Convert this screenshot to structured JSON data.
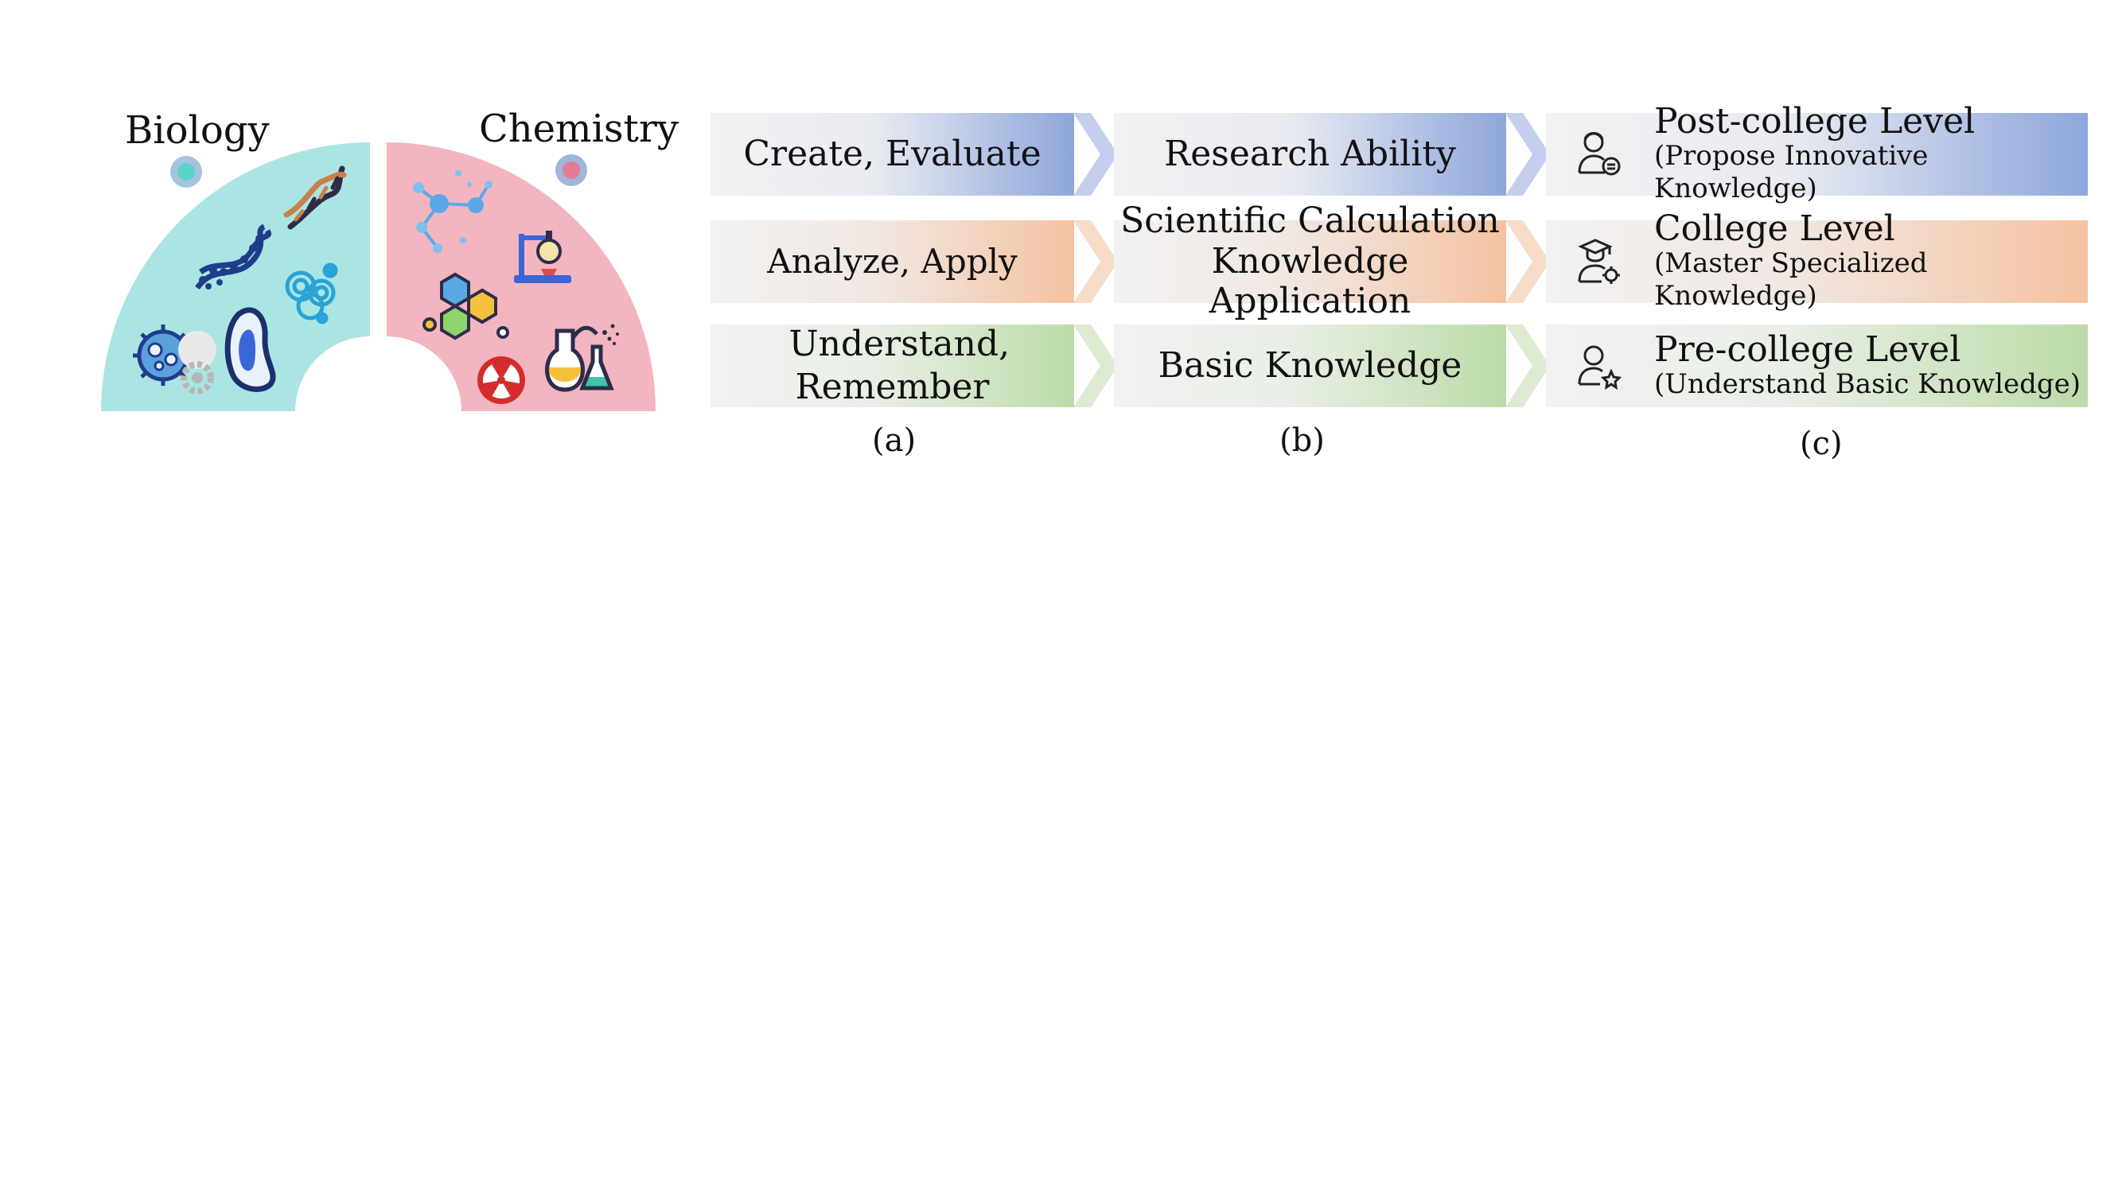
{
  "subjects": {
    "biology": "Biology",
    "chemistry": "Chemistry",
    "colors": {
      "biology": "#abe5e3",
      "chemistry": "#f3b5c0"
    }
  },
  "icons": {
    "biology": [
      "dna-helix-icon",
      "double-helix-icon",
      "cell-icon",
      "virus-icon",
      "gear-icon",
      "bacteria-icon",
      "blue-dot-icon"
    ],
    "chemistry": [
      "molecule-icon",
      "lab-stand-icon",
      "hexagon-molecule-icon",
      "radiation-icon",
      "flask-icon",
      "pink-dot-icon"
    ],
    "levels": [
      "researcher-icon",
      "graduate-icon",
      "student-icon"
    ]
  },
  "panel_a": {
    "caption": "(a)",
    "rows": [
      {
        "text": "Create, Evaluate"
      },
      {
        "text": "Analyze, Apply"
      },
      {
        "text": "Understand, Remember"
      }
    ]
  },
  "panel_b": {
    "caption": "(b)",
    "rows": [
      {
        "text": "Research Ability"
      },
      {
        "line1": "Scientific Calculation",
        "line2": "Knowledge Application"
      },
      {
        "text": "Basic Knowledge"
      }
    ]
  },
  "panel_c": {
    "caption": "(c)",
    "rows": [
      {
        "title": "Post-college Level",
        "subtitle": "(Propose Innovative Knowledge)"
      },
      {
        "title": "College Level",
        "subtitle": "(Master Specialized Knowledge)"
      },
      {
        "title": "Pre-college Level",
        "subtitle": "(Understand Basic Knowledge)"
      }
    ]
  },
  "row_colors": {
    "top": "#8ea6dc",
    "middle": "#f4c2a0",
    "bottom": "#bcdba8"
  }
}
